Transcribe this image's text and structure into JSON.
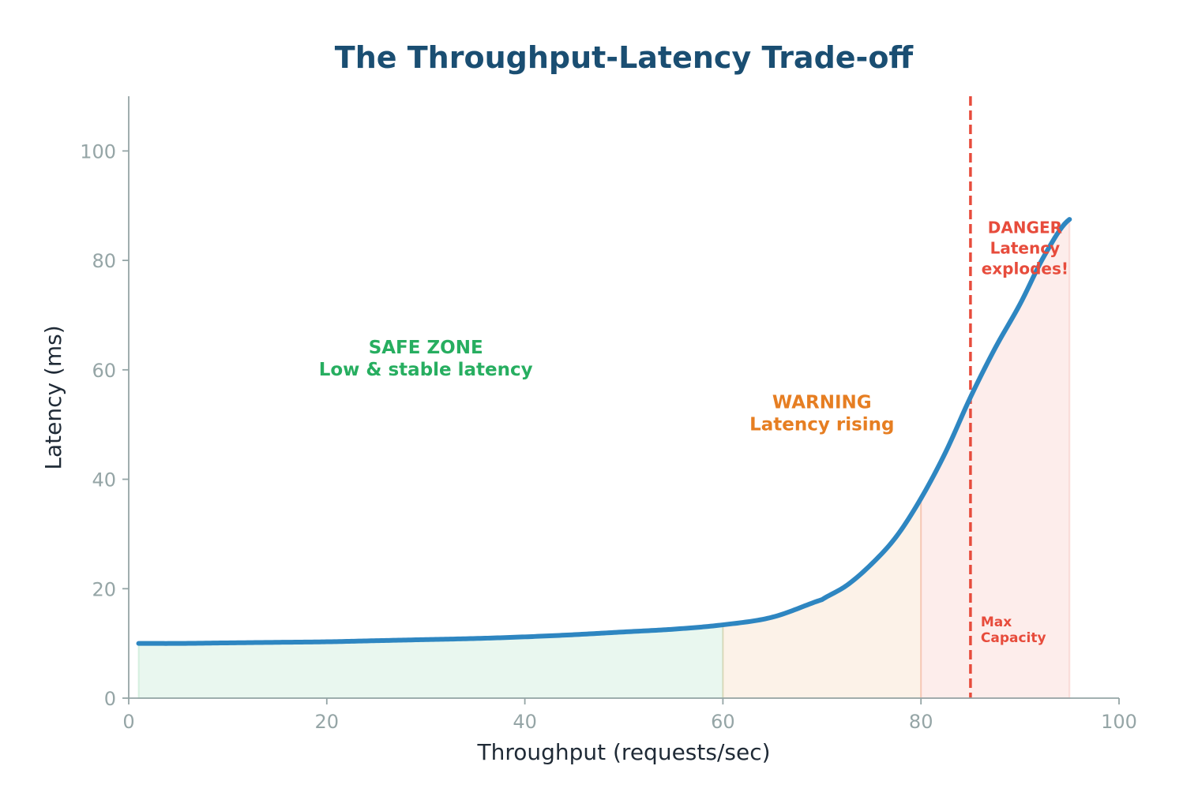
{
  "chart_data": {
    "type": "line",
    "title": "The Throughput-Latency Trade-off",
    "xlabel": "Throughput (requests/sec)",
    "ylabel": "Latency (ms)",
    "xlim": [
      0,
      100
    ],
    "ylim": [
      0,
      110
    ],
    "xticks": [
      "0",
      "20",
      "40",
      "60",
      "80",
      "100"
    ],
    "yticks": [
      "0",
      "20",
      "40",
      "60",
      "80",
      "100"
    ],
    "grid": false,
    "series": [
      {
        "color": "#2e86c1",
        "x": [
          1,
          5,
          10,
          15,
          20,
          25,
          30,
          35,
          40,
          45,
          50,
          55,
          60,
          65,
          70,
          72.5,
          75,
          77.5,
          80,
          82.5,
          85,
          87.5,
          90,
          92.5,
          95
        ],
        "y": [
          10,
          10.0,
          10.1,
          10.2,
          10.3,
          10.5,
          10.7,
          10.9,
          11.2,
          11.6,
          12.1,
          12.6,
          13.4,
          14.8,
          18,
          20.6,
          24.5,
          29.5,
          36.5,
          45,
          55,
          64,
          72,
          81,
          87.5
        ]
      }
    ],
    "zones": [
      {
        "from": 1,
        "to": 60,
        "color": "#27ae60",
        "label_lines": [
          "SAFE ZONE",
          "Low & stable latency"
        ],
        "label_x": 30,
        "label_y": 63
      },
      {
        "from": 60,
        "to": 80,
        "color": "#e67e22",
        "label_lines": [
          "WARNING",
          "Latency rising"
        ],
        "label_x": 70,
        "label_y": 53
      },
      {
        "from": 80,
        "to": 95,
        "color": "#e74c3c",
        "label_lines": [
          "DANGER",
          "Latency",
          "explodes!"
        ],
        "label_x": 90.5,
        "label_y": 85
      }
    ],
    "capacity_line": {
      "x": 85,
      "color": "#e74c3c",
      "label_lines": [
        "Max",
        "Capacity"
      ]
    }
  }
}
